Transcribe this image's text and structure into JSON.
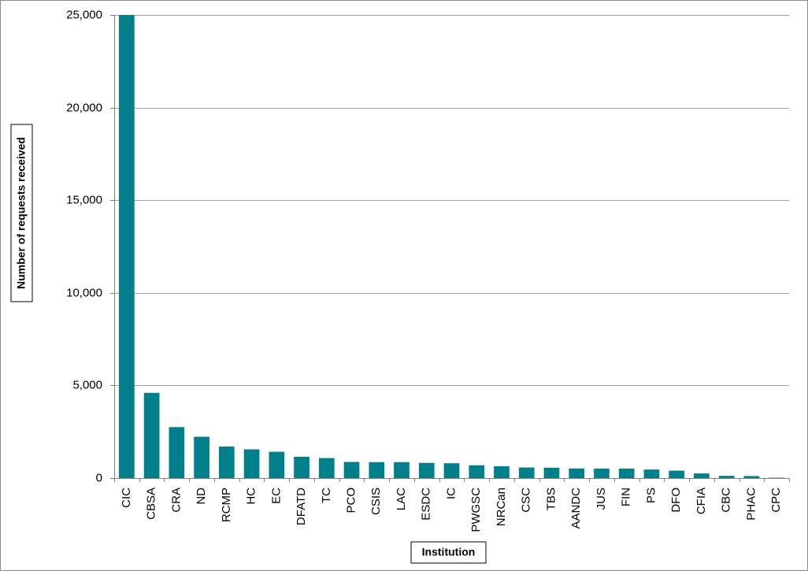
{
  "chart_data": {
    "type": "bar",
    "title": "",
    "xlabel": "Institution",
    "ylabel": "Number of requests received",
    "ylim": [
      0,
      25000
    ],
    "yticks": [
      0,
      5000,
      10000,
      15000,
      20000,
      25000
    ],
    "ytick_labels": [
      "0",
      "5,000",
      "10,000",
      "15,000",
      "20,000",
      "25,000"
    ],
    "grid": true,
    "legend": "none",
    "bar_color": "#00808b",
    "categories": [
      "CIC",
      "CBSA",
      "CRA",
      "ND",
      "RCMP",
      "HC",
      "EC",
      "DFATD",
      "TC",
      "PCO",
      "CSIS",
      "LAC",
      "ESDC",
      "IC",
      "PWGSC",
      "NRCan",
      "CSC",
      "TBS",
      "AANDC",
      "JUS",
      "FIN",
      "PS",
      "DFO",
      "CFIA",
      "CBC",
      "PHAC",
      "CPC"
    ],
    "values": [
      25000,
      4600,
      2750,
      2230,
      1700,
      1550,
      1420,
      1150,
      1080,
      870,
      860,
      860,
      820,
      800,
      690,
      640,
      570,
      560,
      520,
      510,
      510,
      460,
      400,
      250,
      120,
      110,
      20
    ]
  }
}
